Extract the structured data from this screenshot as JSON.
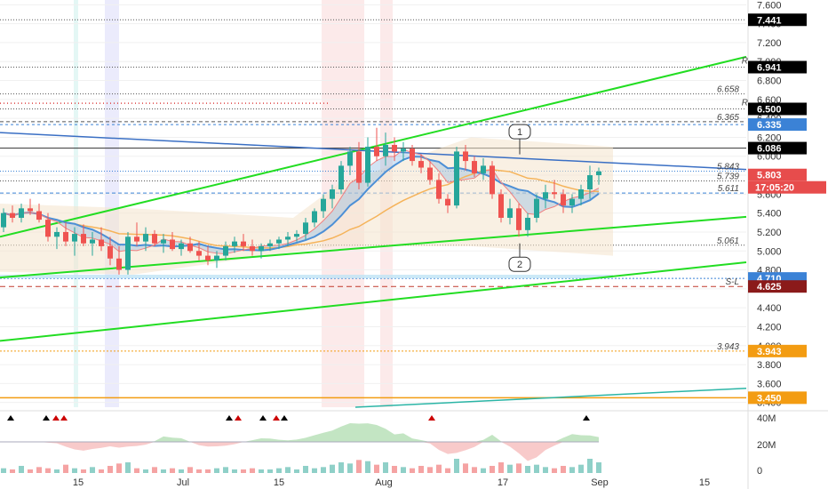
{
  "chart_data": {
    "type": "candlestick",
    "y_axis": {
      "min": 3.35,
      "max": 7.65,
      "ticks": [
        "7.600",
        "7.400",
        "7.200",
        "7.000",
        "6.800",
        "6.600",
        "6.400",
        "6.200",
        "6.000",
        "5.800",
        "5.600",
        "5.400",
        "5.200",
        "5.000",
        "4.800",
        "4.600",
        "4.400",
        "4.200",
        "4.000",
        "3.800",
        "3.600",
        "3.400"
      ]
    },
    "x_axis": {
      "labels": [
        "15",
        "Jul",
        "15",
        "Aug",
        "17",
        "Sep",
        "15"
      ]
    },
    "price_tags": [
      {
        "value": 7.441,
        "label": "7.441",
        "color": "#000000"
      },
      {
        "value": 6.941,
        "label": "6.941",
        "color": "#000000"
      },
      {
        "value": 6.5,
        "label": "6.500",
        "color": "#000000"
      },
      {
        "value": 6.335,
        "label": "6.335",
        "color": "#3b82d6"
      },
      {
        "value": 6.086,
        "label": "6.086",
        "color": "#000000"
      },
      {
        "value": 5.803,
        "label": "5.803",
        "color": "#e74c4c"
      },
      {
        "value": 4.71,
        "label": "4.710",
        "color": "#3b82d6"
      },
      {
        "value": 4.625,
        "label": "4.625",
        "color": "#8b1a1a"
      },
      {
        "value": 3.943,
        "label": "3.943",
        "color": "#f39c12"
      },
      {
        "value": 3.45,
        "label": "3.450",
        "color": "#f39c12"
      }
    ],
    "countdown": "17:05:20",
    "level_labels": [
      {
        "value": 6.658,
        "text": "6.658"
      },
      {
        "value": 6.365,
        "text": "6.365"
      },
      {
        "value": 5.843,
        "text": "5.843"
      },
      {
        "value": 5.739,
        "text": "5.739"
      },
      {
        "value": 5.611,
        "text": "5.611"
      },
      {
        "value": 5.061,
        "text": "5.061"
      },
      {
        "value": 4.625,
        "text": "S-L"
      },
      {
        "value": 3.943,
        "text": "3.943"
      }
    ],
    "tag_markers": [
      "R",
      "R",
      "S",
      "S"
    ],
    "callouts": [
      "1",
      "2"
    ],
    "volume_axis": [
      "40M",
      "20M",
      "0"
    ],
    "candles": [
      {
        "o": 5.25,
        "h": 5.45,
        "l": 5.2,
        "c": 5.4
      },
      {
        "o": 5.4,
        "h": 5.48,
        "l": 5.3,
        "c": 5.35
      },
      {
        "o": 5.35,
        "h": 5.5,
        "l": 5.3,
        "c": 5.45
      },
      {
        "o": 5.45,
        "h": 5.55,
        "l": 5.38,
        "c": 5.42
      },
      {
        "o": 5.42,
        "h": 5.5,
        "l": 5.3,
        "c": 5.33
      },
      {
        "o": 5.33,
        "h": 5.4,
        "l": 5.1,
        "c": 5.15
      },
      {
        "o": 5.15,
        "h": 5.25,
        "l": 5.02,
        "c": 5.2
      },
      {
        "o": 5.2,
        "h": 5.3,
        "l": 5.05,
        "c": 5.1
      },
      {
        "o": 5.1,
        "h": 5.25,
        "l": 4.95,
        "c": 5.18
      },
      {
        "o": 5.18,
        "h": 5.28,
        "l": 5.05,
        "c": 5.08
      },
      {
        "o": 5.08,
        "h": 5.2,
        "l": 4.95,
        "c": 5.12
      },
      {
        "o": 5.12,
        "h": 5.25,
        "l": 5.0,
        "c": 5.05
      },
      {
        "o": 5.05,
        "h": 5.15,
        "l": 4.85,
        "c": 4.92
      },
      {
        "o": 4.92,
        "h": 5.05,
        "l": 4.75,
        "c": 4.8
      },
      {
        "o": 4.8,
        "h": 5.2,
        "l": 4.75,
        "c": 5.15
      },
      {
        "o": 5.15,
        "h": 5.3,
        "l": 5.05,
        "c": 5.1
      },
      {
        "o": 5.1,
        "h": 5.25,
        "l": 5.0,
        "c": 5.18
      },
      {
        "o": 5.18,
        "h": 5.22,
        "l": 5.05,
        "c": 5.08
      },
      {
        "o": 5.08,
        "h": 5.18,
        "l": 4.98,
        "c": 5.12
      },
      {
        "o": 5.12,
        "h": 5.2,
        "l": 5.0,
        "c": 5.02
      },
      {
        "o": 5.02,
        "h": 5.12,
        "l": 4.95,
        "c": 5.08
      },
      {
        "o": 5.08,
        "h": 5.15,
        "l": 4.98,
        "c": 5.0
      },
      {
        "o": 5.0,
        "h": 5.1,
        "l": 4.9,
        "c": 4.95
      },
      {
        "o": 4.95,
        "h": 5.05,
        "l": 4.85,
        "c": 4.9
      },
      {
        "o": 4.9,
        "h": 5.0,
        "l": 4.82,
        "c": 4.95
      },
      {
        "o": 4.95,
        "h": 5.1,
        "l": 4.9,
        "c": 5.05
      },
      {
        "o": 5.05,
        "h": 5.15,
        "l": 4.98,
        "c": 5.1
      },
      {
        "o": 5.1,
        "h": 5.18,
        "l": 5.0,
        "c": 5.05
      },
      {
        "o": 5.05,
        "h": 5.12,
        "l": 4.95,
        "c": 5.0
      },
      {
        "o": 5.0,
        "h": 5.08,
        "l": 4.92,
        "c": 5.05
      },
      {
        "o": 5.05,
        "h": 5.12,
        "l": 5.0,
        "c": 5.08
      },
      {
        "o": 5.08,
        "h": 5.15,
        "l": 5.02,
        "c": 5.12
      },
      {
        "o": 5.12,
        "h": 5.2,
        "l": 5.05,
        "c": 5.15
      },
      {
        "o": 5.15,
        "h": 5.22,
        "l": 5.1,
        "c": 5.18
      },
      {
        "o": 5.18,
        "h": 5.35,
        "l": 5.12,
        "c": 5.3
      },
      {
        "o": 5.3,
        "h": 5.45,
        "l": 5.25,
        "c": 5.42
      },
      {
        "o": 5.42,
        "h": 5.6,
        "l": 5.35,
        "c": 5.55
      },
      {
        "o": 5.55,
        "h": 5.7,
        "l": 5.45,
        "c": 5.65
      },
      {
        "o": 5.65,
        "h": 5.95,
        "l": 5.6,
        "c": 5.9
      },
      {
        "o": 5.9,
        "h": 6.1,
        "l": 5.8,
        "c": 6.05
      },
      {
        "o": 6.05,
        "h": 6.15,
        "l": 5.65,
        "c": 5.72
      },
      {
        "o": 5.72,
        "h": 6.2,
        "l": 5.68,
        "c": 6.1
      },
      {
        "o": 6.1,
        "h": 6.3,
        "l": 5.95,
        "c": 6.0
      },
      {
        "o": 6.0,
        "h": 6.25,
        "l": 5.9,
        "c": 6.12
      },
      {
        "o": 6.12,
        "h": 6.2,
        "l": 5.95,
        "c": 6.05
      },
      {
        "o": 6.05,
        "h": 6.15,
        "l": 5.95,
        "c": 6.08
      },
      {
        "o": 6.08,
        "h": 6.12,
        "l": 5.9,
        "c": 5.95
      },
      {
        "o": 5.95,
        "h": 6.02,
        "l": 5.82,
        "c": 5.88
      },
      {
        "o": 5.88,
        "h": 5.95,
        "l": 5.7,
        "c": 5.75
      },
      {
        "o": 5.75,
        "h": 5.82,
        "l": 5.5,
        "c": 5.55
      },
      {
        "o": 5.55,
        "h": 5.6,
        "l": 5.4,
        "c": 5.48
      },
      {
        "o": 5.48,
        "h": 6.1,
        "l": 5.45,
        "c": 6.05
      },
      {
        "o": 6.05,
        "h": 6.12,
        "l": 5.85,
        "c": 5.95
      },
      {
        "o": 5.95,
        "h": 6.0,
        "l": 5.78,
        "c": 5.82
      },
      {
        "o": 5.82,
        "h": 5.98,
        "l": 5.75,
        "c": 5.9
      },
      {
        "o": 5.9,
        "h": 5.95,
        "l": 5.55,
        "c": 5.6
      },
      {
        "o": 5.6,
        "h": 5.65,
        "l": 5.3,
        "c": 5.35
      },
      {
        "o": 5.35,
        "h": 5.55,
        "l": 5.28,
        "c": 5.45
      },
      {
        "o": 5.45,
        "h": 5.5,
        "l": 5.15,
        "c": 5.22
      },
      {
        "o": 5.22,
        "h": 5.4,
        "l": 5.15,
        "c": 5.35
      },
      {
        "o": 5.35,
        "h": 5.6,
        "l": 5.3,
        "c": 5.55
      },
      {
        "o": 5.55,
        "h": 5.7,
        "l": 5.45,
        "c": 5.62
      },
      {
        "o": 5.62,
        "h": 5.75,
        "l": 5.55,
        "c": 5.6
      },
      {
        "o": 5.6,
        "h": 5.65,
        "l": 5.4,
        "c": 5.48
      },
      {
        "o": 5.48,
        "h": 5.6,
        "l": 5.4,
        "c": 5.55
      },
      {
        "o": 5.55,
        "h": 5.7,
        "l": 5.48,
        "c": 5.65
      },
      {
        "o": 5.65,
        "h": 5.9,
        "l": 5.55,
        "c": 5.8
      },
      {
        "o": 5.8,
        "h": 5.88,
        "l": 5.7,
        "c": 5.84
      }
    ],
    "volumes": [
      4,
      3,
      6,
      3,
      5,
      4,
      3,
      7,
      4,
      3,
      5,
      3,
      6,
      8,
      9,
      4,
      3,
      5,
      3,
      4,
      3,
      5,
      3,
      3,
      4,
      5,
      3,
      3,
      4,
      3,
      3,
      4,
      5,
      3,
      6,
      4,
      5,
      7,
      9,
      8,
      11,
      10,
      7,
      9,
      6,
      5,
      4,
      6,
      5,
      7,
      4,
      12,
      8,
      5,
      4,
      6,
      9,
      7,
      8,
      6,
      7,
      5,
      4,
      6,
      5,
      7,
      12,
      9
    ]
  }
}
